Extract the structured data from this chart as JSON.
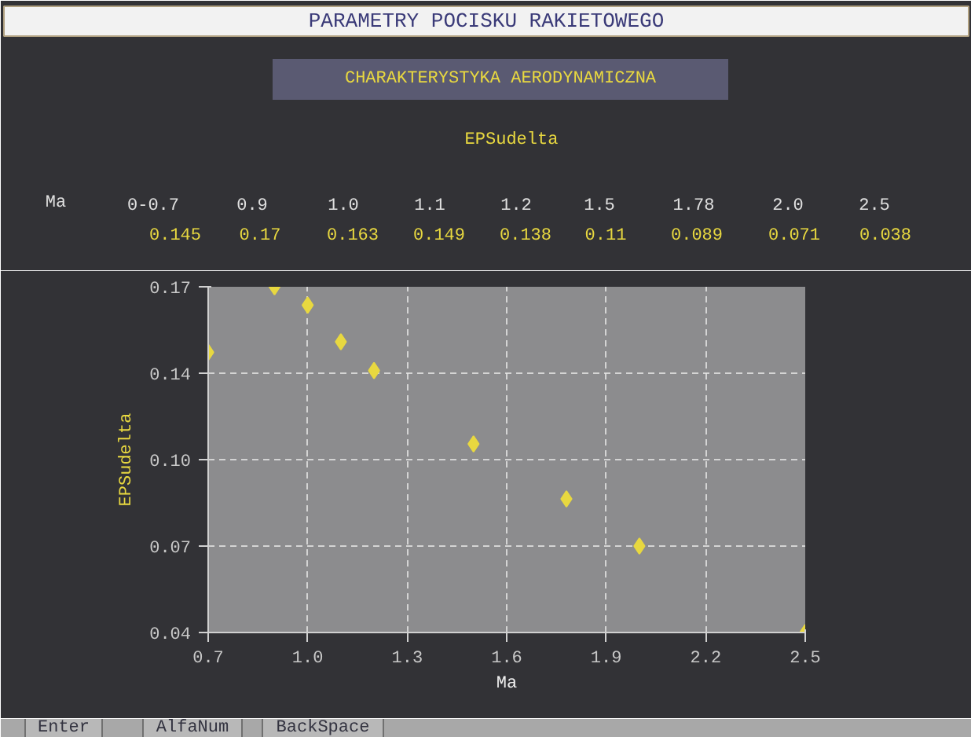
{
  "chart_data": {
    "type": "scatter",
    "title": "PARAMETRY POCISKU RAKIETOWEGO",
    "subtitle": "CHARAKTERYSTYKA AERODYNAMICZNA",
    "xlabel": "Ma",
    "ylabel": "EPSudelta",
    "x": [
      0.7,
      0.9,
      1.0,
      1.1,
      1.2,
      1.5,
      1.78,
      2.0,
      2.5
    ],
    "series": [
      {
        "color": "#e8d840",
        "values": [
          0.145,
          0.17,
          0.163,
          0.149,
          0.138,
          0.11,
          0.089,
          0.071,
          0.038
        ]
      }
    ],
    "marker": "diamond",
    "grid": true,
    "xlim": [
      0.7,
      2.5
    ],
    "xticks": [
      {
        "value": 0.7,
        "label": "0.7"
      },
      {
        "value": 1.0,
        "label": "1.0"
      },
      {
        "value": 1.3,
        "label": "1.3"
      },
      {
        "value": 1.6,
        "label": "1.6"
      },
      {
        "value": 1.9,
        "label": "1.9"
      },
      {
        "value": 2.2,
        "label": "2.2"
      },
      {
        "value": 2.5,
        "label": "2.5"
      }
    ],
    "ylim": [
      0.038,
      0.17
    ],
    "yticks": [
      {
        "value": 0.038,
        "label": "0.04"
      },
      {
        "value": 0.071,
        "label": "0.07"
      },
      {
        "value": 0.104,
        "label": "0.10"
      },
      {
        "value": 0.137,
        "label": "0.14"
      },
      {
        "value": 0.17,
        "label": "0.17"
      }
    ],
    "annotations": [
      "EPSudelta",
      "Ma",
      "0-0.7",
      "0.9",
      "1.0",
      "1.1",
      "1.2",
      "1.5",
      "1.78",
      "2.0",
      "2.5",
      "0.145",
      "0.17",
      "0.163",
      "0.149",
      "0.138",
      "0.11",
      "0.089",
      "0.071",
      "0.038",
      "Enter",
      "AlfaNum",
      "BackSpace"
    ]
  }
}
